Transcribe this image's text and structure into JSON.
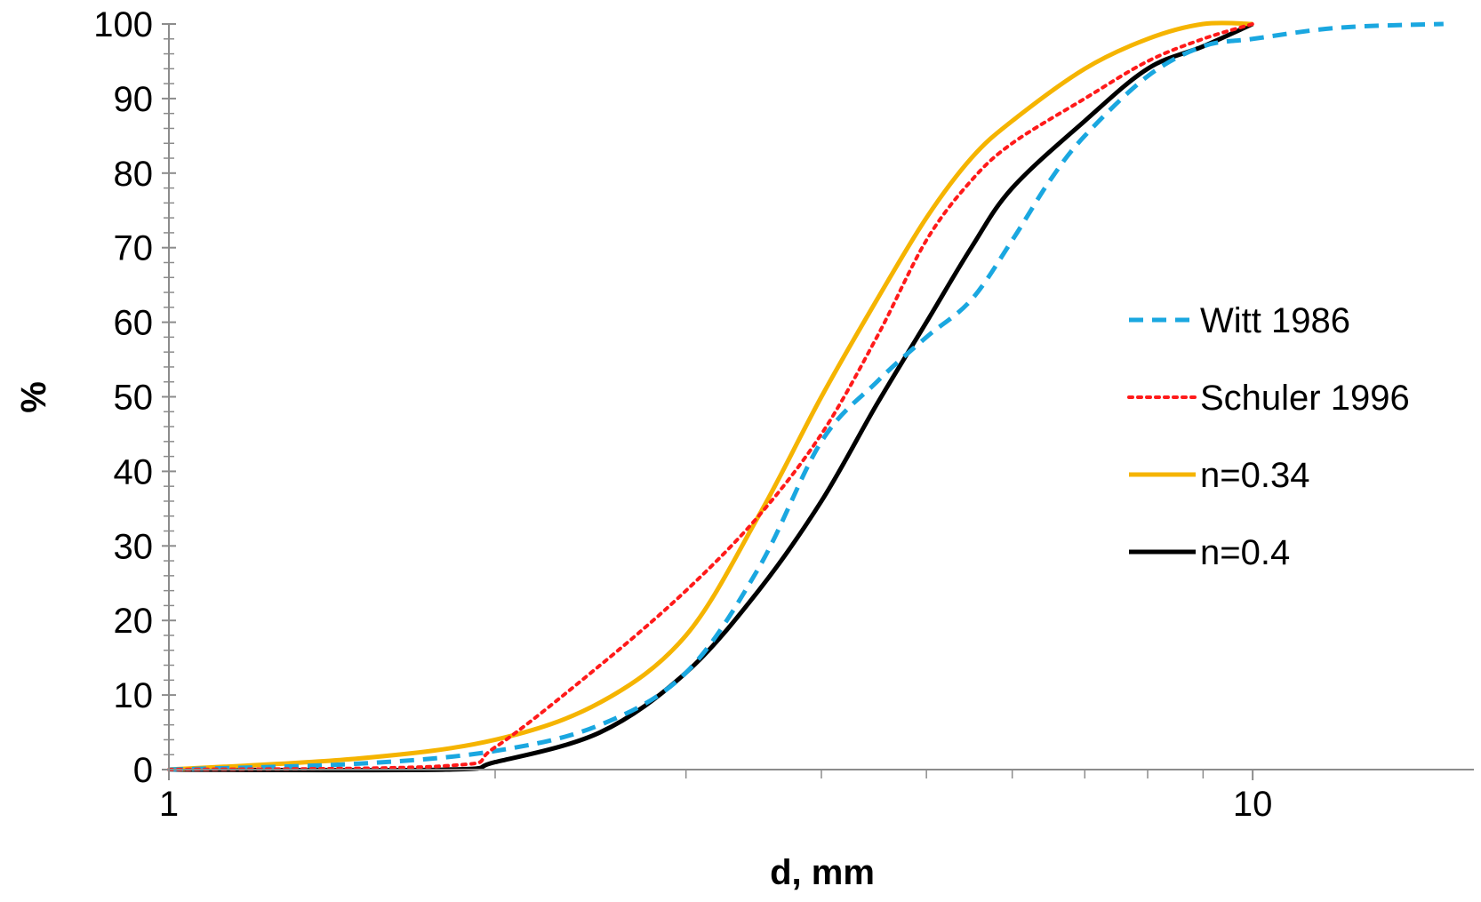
{
  "chart_data": {
    "type": "line",
    "xlabel": "d, mm",
    "ylabel": "%",
    "xscale": "log",
    "xlim": [
      1,
      16
    ],
    "ylim": [
      0,
      100
    ],
    "x_major_ticks": [
      1,
      10
    ],
    "x_minor_ticks": [
      2,
      3,
      4,
      5,
      6,
      7,
      8,
      9
    ],
    "y_ticks": [
      0,
      10,
      20,
      30,
      40,
      50,
      60,
      70,
      80,
      90,
      100
    ],
    "grid": false,
    "legend_position": "right",
    "series": [
      {
        "name": "Witt 1986",
        "color": "#1aa7e0",
        "style": "dashed",
        "points": [
          [
            1,
            0
          ],
          [
            1.5,
            0.8
          ],
          [
            2,
            2.5
          ],
          [
            2.5,
            6
          ],
          [
            3,
            13
          ],
          [
            3.5,
            27
          ],
          [
            4,
            44
          ],
          [
            4.5,
            52
          ],
          [
            5,
            58
          ],
          [
            5.5,
            63
          ],
          [
            6,
            71
          ],
          [
            6.5,
            79
          ],
          [
            7,
            85
          ],
          [
            8,
            93
          ],
          [
            9,
            97
          ],
          [
            10,
            98
          ],
          [
            12,
            99.5
          ],
          [
            15,
            100
          ]
        ]
      },
      {
        "name": "Schuler 1996",
        "color": "#ff1a1a",
        "style": "dotted",
        "points": [
          [
            1,
            0
          ],
          [
            1.8,
            0.5
          ],
          [
            2,
            3
          ],
          [
            2.5,
            14
          ],
          [
            3,
            24
          ],
          [
            3.5,
            34
          ],
          [
            4,
            45
          ],
          [
            4.5,
            58
          ],
          [
            5,
            71
          ],
          [
            5.5,
            79
          ],
          [
            6,
            84
          ],
          [
            7,
            90
          ],
          [
            8,
            95
          ],
          [
            9,
            98
          ],
          [
            10,
            100
          ]
        ]
      },
      {
        "name": "n=0.34",
        "color": "#f5b400",
        "style": "solid",
        "points": [
          [
            1,
            0
          ],
          [
            1.5,
            1.5
          ],
          [
            2,
            4
          ],
          [
            2.5,
            9
          ],
          [
            3,
            18
          ],
          [
            3.5,
            34
          ],
          [
            4,
            50
          ],
          [
            4.5,
            63
          ],
          [
            5,
            74
          ],
          [
            5.5,
            82
          ],
          [
            6,
            87
          ],
          [
            7,
            94
          ],
          [
            8,
            98
          ],
          [
            9,
            100
          ],
          [
            10,
            100
          ]
        ]
      },
      {
        "name": "n=0.4",
        "color": "#000000",
        "style": "solid",
        "points": [
          [
            1,
            0
          ],
          [
            1.8,
            0
          ],
          [
            2,
            1
          ],
          [
            2.5,
            5
          ],
          [
            3,
            13
          ],
          [
            3.5,
            24
          ],
          [
            4,
            36
          ],
          [
            4.5,
            49
          ],
          [
            5,
            60
          ],
          [
            5.5,
            70
          ],
          [
            6,
            78
          ],
          [
            7,
            87
          ],
          [
            8,
            94
          ],
          [
            9,
            97
          ],
          [
            10,
            100
          ]
        ]
      }
    ]
  }
}
